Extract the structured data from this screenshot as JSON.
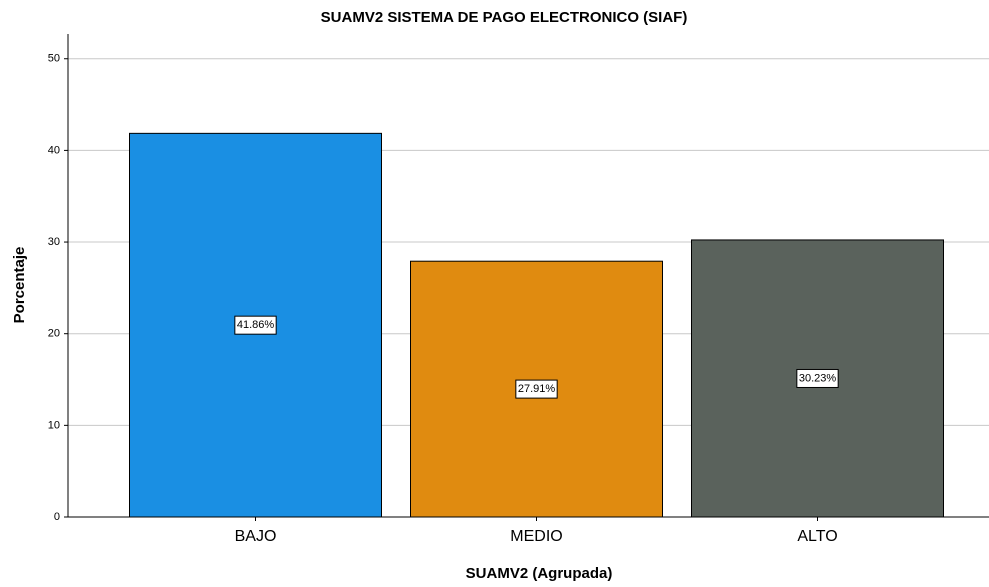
{
  "chart_data": {
    "type": "bar",
    "title": "SUAMV2 SISTEMA DE PAGO ELECTRONICO (SIAF)",
    "x_label": "SUAMV2 (Agrupada)",
    "y_label": "Porcentaje",
    "categories": [
      "BAJO",
      "MEDIO",
      "ALTO"
    ],
    "values": [
      41.86,
      27.91,
      30.23
    ],
    "value_labels": [
      "41.86%",
      "27.91%",
      "30.23%"
    ],
    "colors": [
      "#1a8fe3",
      "#e08b10",
      "#5a625c"
    ],
    "ylim": [
      0,
      52.7
    ],
    "yticks": [
      0,
      10,
      20,
      30,
      40,
      50
    ],
    "grid": true
  }
}
